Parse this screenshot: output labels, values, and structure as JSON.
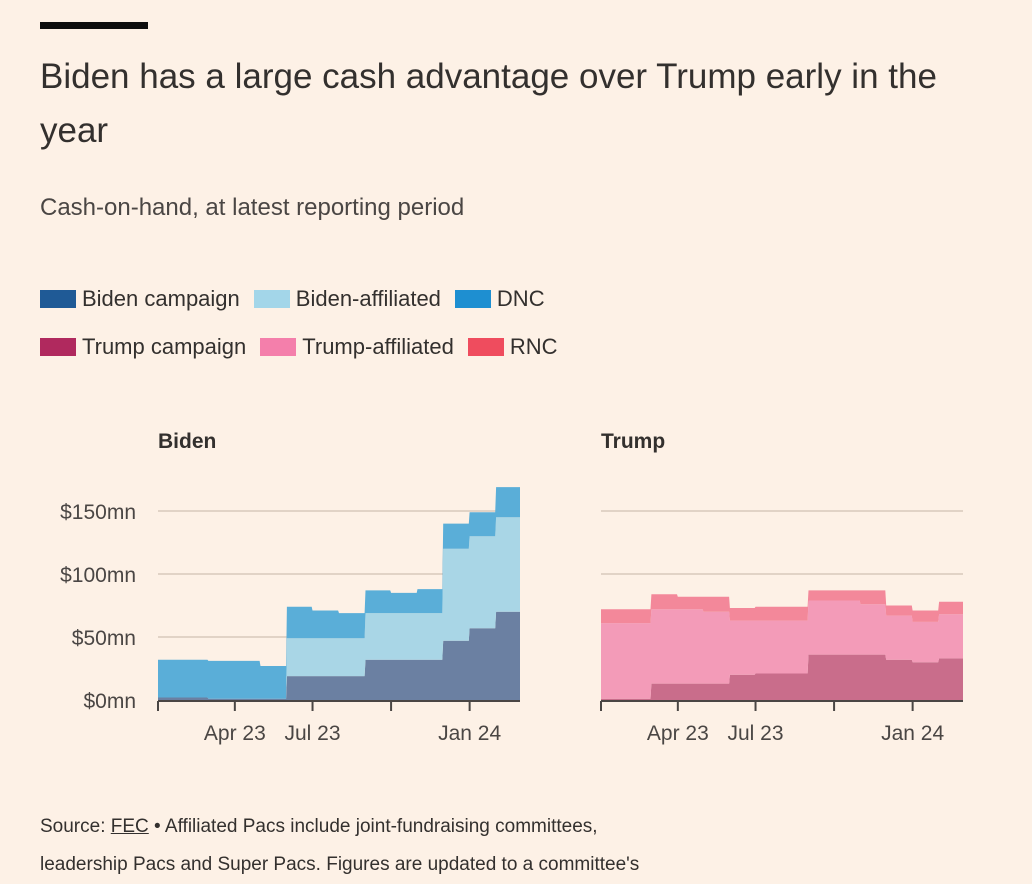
{
  "title": "Biden has a large cash advantage over Trump early in the year",
  "subtitle": "Cash-on-hand, at latest reporting period",
  "legend": {
    "row1": [
      {
        "label": "Biden campaign",
        "color": "#1f5a96"
      },
      {
        "label": "Biden-affiliated",
        "color": "#a3d6e9"
      },
      {
        "label": "DNC",
        "color": "#1e8fd1"
      }
    ],
    "row2": [
      {
        "label": "Trump campaign",
        "color": "#b0295e"
      },
      {
        "label": "Trump-affiliated",
        "color": "#f47fab"
      },
      {
        "label": "RNC",
        "color": "#ef4c5e"
      }
    ]
  },
  "footer": {
    "source_prefix": "Source:",
    "source_link": "FEC",
    "text1": " • Affiliated Pacs include joint-fundraising committees,",
    "text2": "leadership Pacs and Super Pacs. Figures are updated to a committee's"
  },
  "chart_data": [
    {
      "type": "area",
      "stacked": true,
      "title": "Biden",
      "ylim": [
        0,
        150
      ],
      "yticks": [
        0,
        50,
        100,
        150
      ],
      "ytick_labels": [
        "$0mn",
        "$50mn",
        "$100mn",
        "$150mn"
      ],
      "xlim": [
        "2023-01-01",
        "2024-02-29"
      ],
      "xtick_labels": [
        {
          "label": "Apr 23",
          "date": "2023-04-01"
        },
        {
          "label": "Jul 23",
          "date": "2023-07-01"
        },
        {
          "label": "Jan 24",
          "date": "2024-01-01"
        }
      ],
      "x": [
        "2023-01-01",
        "2023-01-31",
        "2023-02-01",
        "2023-02-28",
        "2023-03-01",
        "2023-03-31",
        "2023-04-01",
        "2023-04-30",
        "2023-05-01",
        "2023-05-31",
        "2023-06-01",
        "2023-06-30",
        "2023-07-01",
        "2023-07-31",
        "2023-08-01",
        "2023-08-31",
        "2023-09-01",
        "2023-09-30",
        "2023-10-01",
        "2023-10-31",
        "2023-11-01",
        "2023-11-30",
        "2023-12-01",
        "2023-12-31",
        "2024-01-01",
        "2024-01-31",
        "2024-02-01",
        "2024-02-29"
      ],
      "series": [
        {
          "name": "Biden campaign",
          "color": "#6b80a2",
          "values": [
            2,
            2,
            2,
            2,
            1,
            1,
            1,
            1,
            1,
            1,
            19,
            19,
            19,
            19,
            19,
            19,
            32,
            32,
            32,
            32,
            32,
            32,
            47,
            47,
            57,
            57,
            70,
            70
          ]
        },
        {
          "name": "Biden-affiliated",
          "color": "#a9d6e6",
          "values": [
            0,
            0,
            0,
            0,
            0,
            0,
            0,
            0,
            0,
            0,
            30,
            30,
            30,
            30,
            30,
            30,
            37,
            37,
            37,
            37,
            37,
            37,
            73,
            73,
            73,
            73,
            75,
            75
          ]
        },
        {
          "name": "DNC",
          "color": "#5aaed8",
          "values": [
            30,
            30,
            30,
            30,
            30,
            30,
            30,
            30,
            26,
            26,
            25,
            25,
            22,
            22,
            20,
            20,
            18,
            18,
            16,
            16,
            19,
            19,
            20,
            20,
            19,
            19,
            24,
            24
          ]
        }
      ]
    },
    {
      "type": "area",
      "stacked": true,
      "title": "Trump",
      "ylim": [
        0,
        150
      ],
      "yticks": [
        0,
        50,
        100,
        150
      ],
      "xlim": [
        "2023-01-01",
        "2024-02-29"
      ],
      "xtick_labels": [
        {
          "label": "Apr 23",
          "date": "2023-04-01"
        },
        {
          "label": "Jul 23",
          "date": "2023-07-01"
        },
        {
          "label": "Jan 24",
          "date": "2024-01-01"
        }
      ],
      "x": [
        "2023-01-01",
        "2023-01-31",
        "2023-02-01",
        "2023-02-28",
        "2023-03-01",
        "2023-03-31",
        "2023-04-01",
        "2023-04-30",
        "2023-05-01",
        "2023-05-31",
        "2023-06-01",
        "2023-06-30",
        "2023-07-01",
        "2023-07-31",
        "2023-08-01",
        "2023-08-31",
        "2023-09-01",
        "2023-09-30",
        "2023-10-01",
        "2023-10-31",
        "2023-11-01",
        "2023-11-30",
        "2023-12-01",
        "2023-12-31",
        "2024-01-01",
        "2024-01-31",
        "2024-02-01",
        "2024-02-29"
      ],
      "series": [
        {
          "name": "Trump campaign",
          "color": "#c96d8b",
          "values": [
            1,
            1,
            1,
            1,
            13,
            13,
            13,
            13,
            13,
            13,
            20,
            20,
            21,
            21,
            21,
            21,
            36,
            36,
            36,
            36,
            36,
            36,
            32,
            32,
            30,
            30,
            33,
            33
          ]
        },
        {
          "name": "Trump-affiliated",
          "color": "#f39bb8",
          "values": [
            60,
            60,
            60,
            60,
            59,
            59,
            59,
            59,
            57,
            57,
            43,
            43,
            42,
            42,
            42,
            42,
            43,
            43,
            43,
            43,
            40,
            40,
            35,
            35,
            32,
            32,
            35,
            35
          ]
        },
        {
          "name": "RNC",
          "color": "#f3889a",
          "values": [
            11,
            11,
            11,
            11,
            12,
            12,
            10,
            10,
            12,
            12,
            10,
            10,
            11,
            11,
            11,
            11,
            8,
            8,
            8,
            8,
            11,
            11,
            8,
            8,
            9,
            9,
            10,
            10
          ]
        }
      ]
    }
  ]
}
